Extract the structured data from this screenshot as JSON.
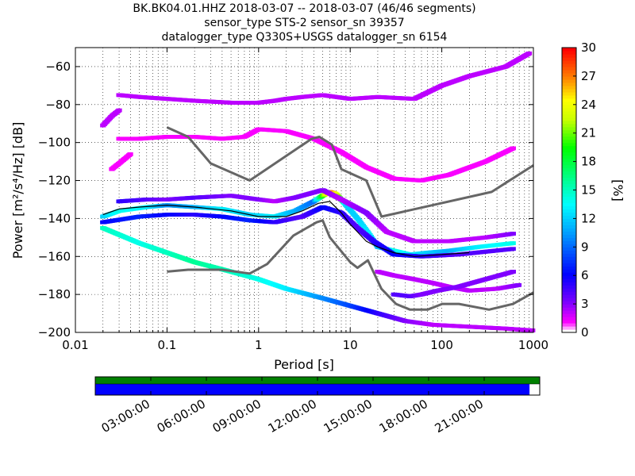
{
  "title": {
    "line1": "BK.BK04.01.HHZ   2018-03-07 -- 2018-03-07  (46/46 segments)",
    "line2": "sensor_type STS-2 sensor_sn 39357",
    "line3": "datalogger_type Q330S+USGS datalogger_sn 6154"
  },
  "colorbar": {
    "label": "[%]",
    "ticks": [
      "0",
      "3",
      "6",
      "9",
      "12",
      "15",
      "18",
      "21",
      "24",
      "27",
      "30"
    ],
    "range": [
      0,
      30
    ]
  },
  "timeline": {
    "ticks": [
      "03:00:00",
      "06:00:00",
      "09:00:00",
      "12:00:00",
      "15:00:00",
      "18:00:00",
      "21:00:00"
    ],
    "coverage_fraction": 0.977,
    "top_bar_color": "#008000",
    "coverage_color": "#0000ff"
  },
  "chart_data": {
    "type": "heatmap",
    "xlabel": "Period [s]",
    "ylabel": "Power [m²/s⁴/Hz] [dB]",
    "x_scale": "log",
    "xlim": [
      0.01,
      1000
    ],
    "ylim": [
      -200,
      -50
    ],
    "x_ticks": [
      "0.01",
      "0.1",
      "1",
      "10",
      "100",
      "1000"
    ],
    "x_tick_values": [
      0.01,
      0.1,
      1,
      10,
      100,
      1000
    ],
    "y_ticks": [
      "−200",
      "−180",
      "−160",
      "−140",
      "−120",
      "−100",
      "−80",
      "−60"
    ],
    "y_tick_values": [
      -200,
      -180,
      -160,
      -140,
      -120,
      -100,
      -80,
      -60
    ],
    "grid": true,
    "series": [
      {
        "name": "",
        "role": "noise model high",
        "color": "#666666",
        "x": [
          0.1,
          0.17,
          0.3,
          0.8,
          3.8,
          4.6,
          6.3,
          8.0,
          15.0,
          22.0,
          350.0,
          1000.0
        ],
        "y": [
          -92,
          -97,
          -111,
          -120,
          -98,
          -97,
          -101,
          -114,
          -120,
          -139,
          -126,
          -112
        ]
      },
      {
        "name": "",
        "role": "noise model low",
        "color": "#666666",
        "x": [
          0.1,
          0.17,
          0.4,
          0.8,
          1.24,
          2.4,
          4.3,
          5.0,
          6.0,
          10.0,
          12.0,
          15.6,
          21.9,
          31.6,
          45.0,
          70.0,
          101.0,
          154.0,
          328.0,
          600.0,
          1000.0
        ],
        "y": [
          -168,
          -167,
          -167,
          -169,
          -164,
          -149,
          -142,
          -141,
          -150,
          -163,
          -166,
          -162,
          -177,
          -185,
          -188,
          -188,
          -185,
          -185,
          -188,
          -185,
          -179
        ]
      },
      {
        "name": "",
        "role": "mode",
        "color": "#000000",
        "x": [
          0.02,
          0.03,
          0.05,
          0.1,
          0.2,
          0.5,
          1,
          2,
          3,
          4.5,
          6,
          8,
          10,
          15,
          20,
          30,
          50,
          100,
          200
        ],
        "y": [
          -138,
          -135,
          -134,
          -133,
          -134,
          -136,
          -139,
          -139,
          -136,
          -132,
          -131,
          -137,
          -143,
          -152,
          -155,
          -158,
          -160,
          -159,
          -158
        ]
      }
    ],
    "heatmap_bands": [
      {
        "x": [
          0.02,
          0.03,
          0.06,
          0.1,
          0.2,
          0.4,
          0.8,
          1.5,
          2.5,
          4,
          5,
          6,
          7,
          9,
          12,
          16,
          20,
          30,
          45,
          70,
          120,
          250,
          600
        ],
        "y": [
          -139,
          -136,
          -134,
          -133,
          -134,
          -135,
          -138,
          -139,
          -136,
          -131,
          -128,
          -126,
          -127,
          -133,
          -140,
          -148,
          -155,
          -157,
          -159,
          -158,
          -157,
          -155,
          -153
        ],
        "pct": [
          12,
          14,
          13,
          10,
          11,
          13,
          12,
          13,
          11,
          9,
          20,
          28,
          24,
          12,
          12,
          13,
          11,
          14,
          13,
          12,
          11,
          13,
          14
        ]
      },
      {
        "x": [
          0.02,
          0.05,
          0.1,
          0.2,
          0.4,
          0.8,
          1.5,
          3,
          5,
          8,
          12,
          18,
          30,
          60,
          150,
          600
        ],
        "y": [
          -142,
          -139,
          -138,
          -138,
          -139,
          -141,
          -142,
          -139,
          -134,
          -137,
          -145,
          -152,
          -159,
          -160,
          -159,
          -156
        ],
        "pct": [
          6,
          7,
          6,
          5,
          6,
          7,
          5,
          4,
          6,
          5,
          4,
          5,
          6,
          5,
          4,
          4
        ]
      },
      {
        "x": [
          0.03,
          0.06,
          0.1,
          0.2,
          0.5,
          1,
          1.5,
          2.5,
          5,
          8,
          15,
          25,
          50,
          120,
          300,
          600
        ],
        "y": [
          -131,
          -130,
          -130,
          -129,
          -128,
          -130,
          -131,
          -129,
          -125,
          -130,
          -137,
          -147,
          -152,
          -152,
          -150,
          -148
        ],
        "pct": [
          5,
          4,
          3,
          4,
          3,
          3,
          2,
          3,
          3,
          2,
          3,
          2,
          2,
          2,
          2,
          3
        ]
      },
      {
        "x": [
          0.02,
          0.05,
          0.1,
          0.2,
          0.5,
          1,
          2,
          5,
          10,
          20,
          40,
          80,
          200,
          500,
          1000
        ],
        "y": [
          -145,
          -153,
          -158,
          -163,
          -168,
          -172,
          -177,
          -182,
          -186,
          -190,
          -194,
          -196,
          -197,
          -198,
          -199
        ],
        "pct": [
          15,
          14,
          15,
          16,
          15,
          14,
          13,
          10,
          8,
          5,
          3,
          2,
          2,
          2,
          2
        ]
      },
      {
        "x": [
          0.03,
          0.05,
          0.1,
          0.2,
          0.5,
          1,
          1.5,
          2,
          3,
          5,
          7,
          10,
          20,
          50,
          100,
          200,
          500,
          900
        ],
        "y": [
          -75,
          -76,
          -77,
          -78,
          -79,
          -79,
          -78,
          -77,
          -76,
          -75,
          -76,
          -77,
          -76,
          -77,
          -70,
          -65,
          -60,
          -53
        ],
        "pct": [
          2,
          2,
          2,
          2,
          2,
          2,
          2,
          2,
          2,
          2,
          2,
          2,
          2,
          2,
          2,
          2,
          2,
          2
        ]
      },
      {
        "x": [
          0.03,
          0.05,
          0.1,
          0.2,
          0.4,
          0.7,
          1,
          2,
          4,
          8,
          15,
          30,
          60,
          120,
          300,
          600
        ],
        "y": [
          -98,
          -98,
          -97,
          -97,
          -98,
          -97,
          -93,
          -94,
          -98,
          -105,
          -113,
          -119,
          -120,
          -117,
          -110,
          -103
        ],
        "pct": [
          1,
          1,
          1,
          1,
          1,
          1,
          1,
          1,
          1,
          1,
          1,
          1,
          1,
          1,
          1,
          1
        ]
      },
      {
        "x": [
          0.02,
          0.025,
          0.03
        ],
        "y": [
          -91,
          -86,
          -83
        ],
        "pct": [
          2,
          2,
          2
        ]
      },
      {
        "x": [
          0.025,
          0.03,
          0.04
        ],
        "y": [
          -114,
          -111,
          -106
        ],
        "pct": [
          1,
          1,
          1
        ]
      },
      {
        "x": [
          20,
          30,
          50,
          80,
          120,
          200,
          400,
          700
        ],
        "y": [
          -168,
          -170,
          -172,
          -174,
          -176,
          -178,
          -177,
          -175
        ],
        "pct": [
          2,
          2,
          2,
          2,
          2,
          2,
          2,
          3
        ]
      },
      {
        "x": [
          30,
          45,
          60,
          90,
          150,
          300,
          600
        ],
        "y": [
          -180,
          -181,
          -180,
          -178,
          -176,
          -172,
          -168
        ],
        "pct": [
          4,
          4,
          3,
          3,
          3,
          3,
          3
        ]
      }
    ]
  }
}
